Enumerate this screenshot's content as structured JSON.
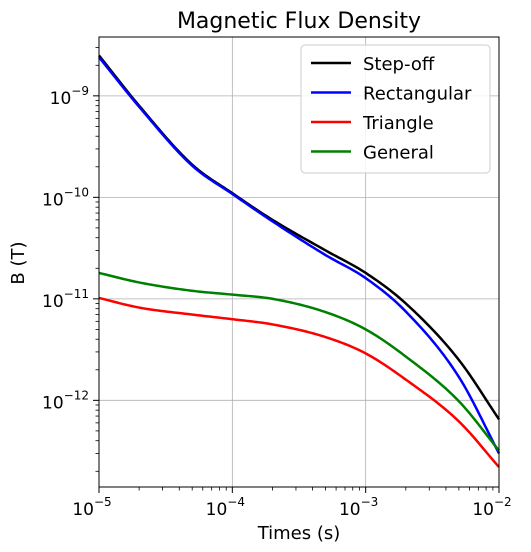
{
  "chart_data": {
    "type": "line",
    "title": "Magnetic Flux Density",
    "xlabel": "Times (s)",
    "ylabel": "B (T)",
    "xscale": "log",
    "yscale": "log",
    "xlim": [
      1e-05,
      0.01
    ],
    "ylim": [
      1.4e-13,
      3.8e-09
    ],
    "grid": true,
    "legend_position": "top-right",
    "x_ticks": [
      {
        "base": "10",
        "exp": "−5",
        "value": 1e-05
      },
      {
        "base": "10",
        "exp": "−4",
        "value": 0.0001
      },
      {
        "base": "10",
        "exp": "−3",
        "value": 0.001
      },
      {
        "base": "10",
        "exp": "−2",
        "value": 0.01
      }
    ],
    "y_ticks": [
      {
        "base": "10",
        "exp": "−12",
        "value": 1e-12
      },
      {
        "base": "10",
        "exp": "−11",
        "value": 1e-11
      },
      {
        "base": "10",
        "exp": "−10",
        "value": 1e-10
      },
      {
        "base": "10",
        "exp": "−9",
        "value": 1e-09
      }
    ],
    "x": [
      1e-05,
      2e-05,
      5e-05,
      0.0001,
      0.0002,
      0.0005,
      0.001,
      0.002,
      0.005,
      0.01
    ],
    "series": [
      {
        "name": "Step-off",
        "color": "#000000",
        "values": [
          2.5e-09,
          8e-10,
          2.1e-10,
          1.1e-10,
          6e-11,
          3e-11,
          1.8e-11,
          9e-12,
          2.5e-12,
          6.5e-13
        ]
      },
      {
        "name": "Rectangular",
        "color": "#0000ff",
        "values": [
          2.4e-09,
          7.8e-10,
          2.05e-10,
          1.08e-10,
          5.8e-11,
          2.7e-11,
          1.6e-11,
          7.5e-12,
          1.7e-12,
          3e-13
        ]
      },
      {
        "name": "Triangle",
        "color": "#ff0000",
        "values": [
          1.02e-11,
          8.2e-12,
          7e-12,
          6.3e-12,
          5.6e-12,
          4.2e-12,
          2.9e-12,
          1.6e-12,
          6.2e-13,
          2.2e-13
        ]
      },
      {
        "name": "General",
        "color": "#008000",
        "values": [
          1.8e-11,
          1.45e-11,
          1.2e-11,
          1.1e-11,
          1e-11,
          7.4e-12,
          5e-12,
          2.7e-12,
          9.8e-13,
          3.2e-13
        ]
      }
    ]
  }
}
